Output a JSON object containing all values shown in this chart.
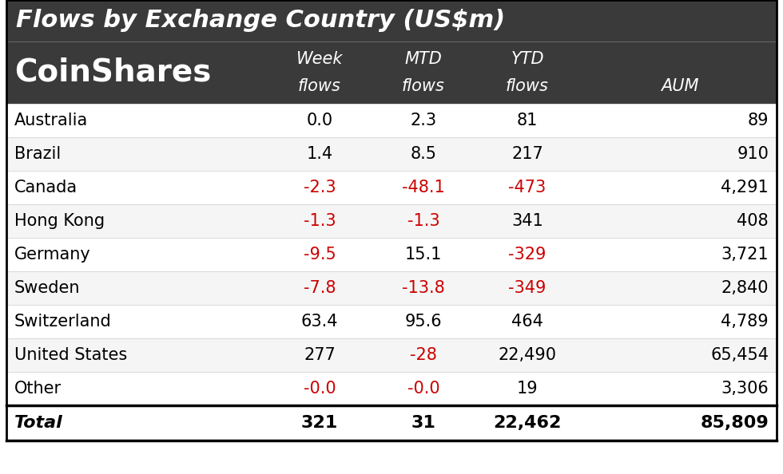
{
  "title": "Flows by Exchange Country (US$m)",
  "logo_text": "CoinShares",
  "header_bg": "#3a3a3a",
  "header_text_color": "#ffffff",
  "col_headers_line1": [
    "Week",
    "MTD",
    "YTD",
    ""
  ],
  "col_headers_line2": [
    "flows",
    "flows",
    "flows",
    "AUM"
  ],
  "rows": [
    {
      "country": "Australia",
      "week": "0.0",
      "mtd": "2.3",
      "ytd": "81",
      "aum": "89",
      "week_neg": false,
      "mtd_neg": false,
      "ytd_neg": false
    },
    {
      "country": "Brazil",
      "week": "1.4",
      "mtd": "8.5",
      "ytd": "217",
      "aum": "910",
      "week_neg": false,
      "mtd_neg": false,
      "ytd_neg": false
    },
    {
      "country": "Canada",
      "week": "-2.3",
      "mtd": "-48.1",
      "ytd": "-473",
      "aum": "4,291",
      "week_neg": true,
      "mtd_neg": true,
      "ytd_neg": true
    },
    {
      "country": "Hong Kong",
      "week": "-1.3",
      "mtd": "-1.3",
      "ytd": "341",
      "aum": "408",
      "week_neg": true,
      "mtd_neg": true,
      "ytd_neg": false
    },
    {
      "country": "Germany",
      "week": "-9.5",
      "mtd": "15.1",
      "ytd": "-329",
      "aum": "3,721",
      "week_neg": true,
      "mtd_neg": false,
      "ytd_neg": true
    },
    {
      "country": "Sweden",
      "week": "-7.8",
      "mtd": "-13.8",
      "ytd": "-349",
      "aum": "2,840",
      "week_neg": true,
      "mtd_neg": true,
      "ytd_neg": true
    },
    {
      "country": "Switzerland",
      "week": "63.4",
      "mtd": "95.6",
      "ytd": "464",
      "aum": "4,789",
      "week_neg": false,
      "mtd_neg": false,
      "ytd_neg": false
    },
    {
      "country": "United States",
      "week": "277",
      "mtd": "-28",
      "ytd": "22,490",
      "aum": "65,454",
      "week_neg": false,
      "mtd_neg": true,
      "ytd_neg": false
    },
    {
      "country": "Other",
      "week": "-0.0",
      "mtd": "-0.0",
      "ytd": "19",
      "aum": "3,306",
      "week_neg": true,
      "mtd_neg": true,
      "ytd_neg": false
    }
  ],
  "total": {
    "country": "Total",
    "week": "321",
    "mtd": "31",
    "ytd": "22,462",
    "aum": "85,809"
  },
  "neg_color": "#cc0000",
  "pos_color": "#000000",
  "total_color": "#000000",
  "border_color": "#000000",
  "title_fontsize": 22,
  "header_fontsize": 15,
  "data_fontsize": 15,
  "country_fontsize": 15,
  "logo_fontsize": 28
}
